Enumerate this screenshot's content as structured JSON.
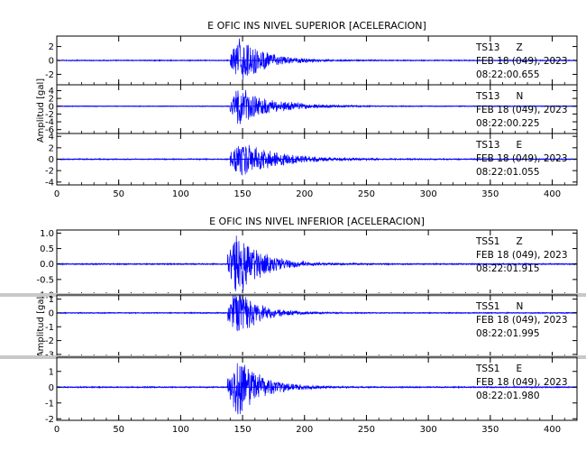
{
  "colors": {
    "trace": "#0000ff",
    "frame": "#000000",
    "separator": "#c8c8c8",
    "background": "#ffffff"
  },
  "chart_data": [
    {
      "type": "line",
      "title": "E OFIC INS NIVEL SUPERIOR [ACELERACION]",
      "ylabel": "Amplitud [gal]",
      "xlim": [
        0,
        420
      ],
      "xticks": [
        0,
        50,
        100,
        150,
        200,
        250,
        300,
        350,
        400
      ],
      "panels": [
        {
          "station": "TS13",
          "component": "Z",
          "date": "FEB 18 (049), 2023",
          "time": "08:22:00.655",
          "ylim": [
            -3.5,
            3.5
          ],
          "yticks": [
            -2,
            0,
            2
          ],
          "signal": {
            "onset": 140,
            "peak_time": 148,
            "peak_amplitude": 3.0,
            "decay_end": 230,
            "noise": 0.08
          }
        },
        {
          "station": "TS13",
          "component": "N",
          "date": "FEB 18 (049), 2023",
          "time": "08:22:00.225",
          "ylim": [
            -7,
            5.5
          ],
          "yticks": [
            -6,
            -4,
            -2,
            0,
            2,
            4
          ],
          "signal": {
            "onset": 140,
            "peak_time": 147,
            "peak_amplitude": 4.5,
            "decay_end": 255,
            "noise": 0.1
          }
        },
        {
          "station": "TS13",
          "component": "E",
          "date": "FEB 18 (049), 2023",
          "time": "08:22:01.055",
          "ylim": [
            -4.5,
            4.5
          ],
          "yticks": [
            -4,
            -2,
            0,
            2,
            4
          ],
          "signal": {
            "onset": 140,
            "peak_time": 149,
            "peak_amplitude": 3.0,
            "decay_end": 265,
            "noise": 0.1
          }
        }
      ]
    },
    {
      "type": "line",
      "title": "E OFIC INS NIVEL INFERIOR [ACELERACION]",
      "ylabel": "Amplitud [gal]",
      "xlim": [
        0,
        420
      ],
      "xticks": [
        0,
        50,
        100,
        150,
        200,
        250,
        300,
        350,
        400
      ],
      "panels": [
        {
          "station": "TSS1",
          "component": "Z",
          "date": "FEB 18 (049), 2023",
          "time": "08:22:01.915",
          "ylim": [
            -1.0,
            1.1
          ],
          "yticks": [
            -1.0,
            -0.5,
            0.0,
            0.5,
            1.0
          ],
          "signal": {
            "onset": 138,
            "peak_time": 146,
            "peak_amplitude": 1.0,
            "decay_end": 225,
            "noise": 0.02
          }
        },
        {
          "station": "TSS1",
          "component": "N",
          "date": "FEB 18 (049), 2023",
          "time": "08:22:01.995",
          "ylim": [
            -3.2,
            1.3
          ],
          "yticks": [
            -3,
            -2,
            -1,
            0,
            1
          ],
          "signal": {
            "onset": 138,
            "peak_time": 146,
            "peak_amplitude": 1.7,
            "decay_end": 215,
            "noise": 0.04
          }
        },
        {
          "station": "TSS1",
          "component": "E",
          "date": "FEB 18 (049), 2023",
          "time": "08:22:01.980",
          "ylim": [
            -2.1,
            1.9
          ],
          "yticks": [
            -2,
            -1,
            0,
            1
          ],
          "signal": {
            "onset": 138,
            "peak_time": 147,
            "peak_amplitude": 1.7,
            "decay_end": 225,
            "noise": 0.04
          }
        }
      ]
    }
  ]
}
